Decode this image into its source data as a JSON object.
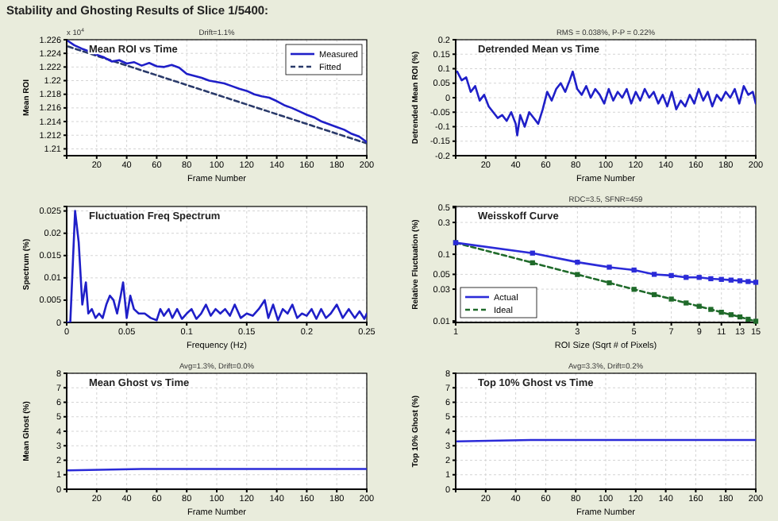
{
  "chart_data": [
    {
      "type": "line",
      "title": "Stability and Ghosting Results of Slice 1/5400:",
      "subtitle": "Mean ROI vs Time",
      "annotations": [
        "Drift=1.1%",
        "x 10$^{4}$"
      ],
      "xlabel": "Frame Number",
      "ylabel": "Mean ROI",
      "xlim": [
        0,
        200
      ],
      "xticks": [
        20,
        40,
        60,
        80,
        100,
        120,
        140,
        160,
        180,
        200
      ],
      "ylim": [
        1.209,
        1.226
      ],
      "yticks": [
        1.21,
        1.212,
        1.214,
        1.216,
        1.218,
        1.22,
        1.222,
        1.224,
        1.226
      ],
      "grid": true,
      "legend": "top right",
      "series": [
        {
          "name": "Measured",
          "color": "#1f1fc8",
          "line_style": "solid",
          "x": [
            1,
            5,
            10,
            15,
            20,
            25,
            30,
            35,
            40,
            45,
            50,
            55,
            60,
            65,
            70,
            75,
            80,
            85,
            90,
            95,
            100,
            105,
            110,
            115,
            120,
            125,
            130,
            135,
            140,
            145,
            150,
            155,
            160,
            165,
            170,
            175,
            180,
            185,
            190,
            195,
            200
          ],
          "values": [
            1.2258,
            1.2252,
            1.2247,
            1.2243,
            1.2238,
            1.2234,
            1.2228,
            1.223,
            1.2225,
            1.2227,
            1.2222,
            1.2226,
            1.2221,
            1.222,
            1.2223,
            1.2219,
            1.221,
            1.2207,
            1.2204,
            1.22,
            1.2198,
            1.2196,
            1.2192,
            1.2188,
            1.2185,
            1.218,
            1.2177,
            1.2175,
            1.217,
            1.2164,
            1.216,
            1.2155,
            1.215,
            1.2146,
            1.214,
            1.2136,
            1.2132,
            1.2128,
            1.2122,
            1.2118,
            1.211
          ]
        },
        {
          "name": "Fitted",
          "color": "#2a3a6a",
          "line_style": "dashed",
          "x": [
            1,
            200
          ],
          "values": [
            1.225,
            1.2108
          ]
        }
      ]
    },
    {
      "type": "line",
      "subtitle": "Detrended Mean vs Time",
      "annotations": [
        "RMS = 0.038%, P-P = 0.22%"
      ],
      "xlabel": "Frame Number",
      "ylabel": "Detrended Mean ROI (%)",
      "xlim": [
        0,
        200
      ],
      "xticks": [
        20,
        40,
        60,
        80,
        100,
        120,
        140,
        160,
        180,
        200
      ],
      "ylim": [
        -0.2,
        0.2
      ],
      "yticks": [
        -0.2,
        -0.15,
        -0.1,
        -0.05,
        0,
        0.05,
        0.1,
        0.15,
        0.2
      ],
      "grid": true,
      "series": [
        {
          "color": "#1f1fc8",
          "x": [
            1,
            4,
            7,
            10,
            13,
            16,
            19,
            22,
            25,
            28,
            31,
            34,
            37,
            40,
            41,
            43,
            46,
            49,
            52,
            55,
            58,
            61,
            64,
            67,
            70,
            73,
            76,
            78,
            81,
            84,
            87,
            90,
            93,
            96,
            99,
            102,
            105,
            108,
            111,
            114,
            117,
            120,
            123,
            126,
            129,
            132,
            135,
            138,
            141,
            144,
            147,
            150,
            153,
            156,
            159,
            162,
            165,
            168,
            171,
            174,
            177,
            180,
            183,
            186,
            189,
            192,
            195,
            198,
            200
          ],
          "values": [
            0.09,
            0.06,
            0.07,
            0.02,
            0.04,
            -0.01,
            0.01,
            -0.03,
            -0.05,
            -0.07,
            -0.06,
            -0.08,
            -0.05,
            -0.09,
            -0.13,
            -0.06,
            -0.1,
            -0.05,
            -0.07,
            -0.09,
            -0.04,
            0.02,
            -0.01,
            0.03,
            0.05,
            0.02,
            0.06,
            0.09,
            0.03,
            0.01,
            0.04,
            0,
            0.03,
            0.01,
            -0.02,
            0.03,
            -0.01,
            0.02,
            0,
            0.03,
            -0.02,
            0.02,
            -0.01,
            0.03,
            0,
            0.02,
            -0.02,
            0.01,
            -0.03,
            0.02,
            -0.04,
            -0.01,
            -0.03,
            0.01,
            -0.02,
            0.03,
            -0.01,
            0.02,
            -0.03,
            0.01,
            -0.01,
            0.02,
            0,
            0.03,
            -0.02,
            0.04,
            0.01,
            0.02,
            -0.02
          ]
        }
      ]
    },
    {
      "type": "line",
      "subtitle": "Fluctuation Freq Spectrum",
      "xlabel": "Frequency (Hz)",
      "ylabel": "Spectrum (%)",
      "xlim": [
        0,
        0.25
      ],
      "xticks": [
        0,
        0.05,
        0.1,
        0.15,
        0.2,
        0.25
      ],
      "ylim": [
        0,
        0.026
      ],
      "yticks": [
        0,
        0.005,
        0.01,
        0.015,
        0.02,
        0.025
      ],
      "grid": true,
      "series": [
        {
          "color": "#1f1fc8",
          "x": [
            0,
            0.003,
            0.007,
            0.01,
            0.013,
            0.016,
            0.018,
            0.021,
            0.024,
            0.027,
            0.03,
            0.033,
            0.036,
            0.039,
            0.042,
            0.045,
            0.047,
            0.05,
            0.053,
            0.056,
            0.06,
            0.065,
            0.07,
            0.075,
            0.078,
            0.081,
            0.085,
            0.088,
            0.092,
            0.096,
            0.1,
            0.104,
            0.108,
            0.112,
            0.116,
            0.12,
            0.124,
            0.128,
            0.132,
            0.136,
            0.14,
            0.145,
            0.15,
            0.155,
            0.16,
            0.165,
            0.168,
            0.172,
            0.176,
            0.18,
            0.184,
            0.188,
            0.192,
            0.196,
            0.2,
            0.204,
            0.208,
            0.212,
            0.216,
            0.22,
            0.225,
            0.23,
            0.235,
            0.24,
            0.244,
            0.248,
            0.25
          ],
          "values": [
            0,
            0,
            0.025,
            0.018,
            0.004,
            0.009,
            0.002,
            0.003,
            0.001,
            0.002,
            0.001,
            0.004,
            0.006,
            0.005,
            0.002,
            0.006,
            0.009,
            0.001,
            0.006,
            0.003,
            0.002,
            0.002,
            0.001,
            0.0005,
            0.003,
            0.0015,
            0.003,
            0.001,
            0.003,
            0.0008,
            0.002,
            0.003,
            0.0008,
            0.002,
            0.004,
            0.0015,
            0.003,
            0.002,
            0.003,
            0.0015,
            0.004,
            0.001,
            0.002,
            0.0015,
            0.003,
            0.005,
            0.001,
            0.004,
            0.0005,
            0.003,
            0.002,
            0.004,
            0.001,
            0.002,
            0.0015,
            0.003,
            0.0008,
            0.003,
            0.001,
            0.002,
            0.004,
            0.001,
            0.003,
            0.001,
            0.0025,
            0.0008,
            0.002
          ]
        }
      ]
    },
    {
      "type": "line",
      "subtitle": "Weisskoff Curve",
      "annotations": [
        "RDC=3.5, SFNR=459"
      ],
      "xlabel": "ROI Size (Sqrt # of Pixels)",
      "ylabel": "Relative Fluctuation (%)",
      "log": "xy",
      "xlim": [
        1,
        15
      ],
      "xticks": [
        1,
        3,
        5,
        7,
        9,
        11,
        13,
        15
      ],
      "ylim": [
        0.0095,
        0.52
      ],
      "yticks": [
        0.01,
        0.03,
        0.05,
        0.1,
        0.3,
        0.5
      ],
      "grid": true,
      "legend": "bottom left",
      "marker": "square",
      "series": [
        {
          "name": "Actual",
          "color": "#2b2bd8",
          "line_style": "solid",
          "x": [
            1,
            2,
            3,
            4,
            5,
            6,
            7,
            8,
            9,
            10,
            11,
            12,
            13,
            14,
            15
          ],
          "values": [
            0.149,
            0.104,
            0.076,
            0.064,
            0.058,
            0.05,
            0.048,
            0.045,
            0.045,
            0.043,
            0.042,
            0.041,
            0.04,
            0.039,
            0.038
          ]
        },
        {
          "name": "Ideal",
          "color": "#1f6a2a",
          "line_style": "dashed",
          "x": [
            1,
            2,
            3,
            4,
            5,
            6,
            7,
            8,
            9,
            10,
            11,
            12,
            13,
            14,
            15
          ],
          "values": [
            0.149,
            0.0745,
            0.0497,
            0.0373,
            0.0298,
            0.0248,
            0.0213,
            0.0186,
            0.0166,
            0.0149,
            0.0135,
            0.0124,
            0.0115,
            0.0106,
            0.0099
          ]
        }
      ]
    },
    {
      "type": "line",
      "subtitle": "Mean Ghost vs Time",
      "annotations": [
        "Avg=1.3%, Drift=0.0%"
      ],
      "xlabel": "Frame Number",
      "ylabel": "Mean Ghost (%)",
      "xlim": [
        0,
        200
      ],
      "xticks": [
        20,
        40,
        60,
        80,
        100,
        120,
        140,
        160,
        180,
        200
      ],
      "ylim": [
        0,
        8
      ],
      "yticks": [
        0,
        1,
        2,
        3,
        4,
        5,
        6,
        7,
        8
      ],
      "grid": true,
      "series": [
        {
          "color": "#2b2bd8",
          "x": [
            1,
            50,
            100,
            150,
            200
          ],
          "values": [
            1.3,
            1.4,
            1.4,
            1.4,
            1.4
          ]
        }
      ]
    },
    {
      "type": "line",
      "subtitle": "Top 10% Ghost vs Time",
      "annotations": [
        "Avg=3.3%, Drift=0.2%"
      ],
      "xlabel": "Frame Number",
      "ylabel": "Top 10% Ghost (%)",
      "xlim": [
        0,
        200
      ],
      "xticks": [
        20,
        40,
        60,
        80,
        100,
        120,
        140,
        160,
        180,
        200
      ],
      "ylim": [
        0,
        8
      ],
      "yticks": [
        0,
        1,
        2,
        3,
        4,
        5,
        6,
        7,
        8
      ],
      "grid": true,
      "series": [
        {
          "color": "#2b2bd8",
          "x": [
            1,
            50,
            100,
            150,
            200
          ],
          "values": [
            3.3,
            3.4,
            3.4,
            3.4,
            3.4
          ]
        }
      ]
    }
  ]
}
